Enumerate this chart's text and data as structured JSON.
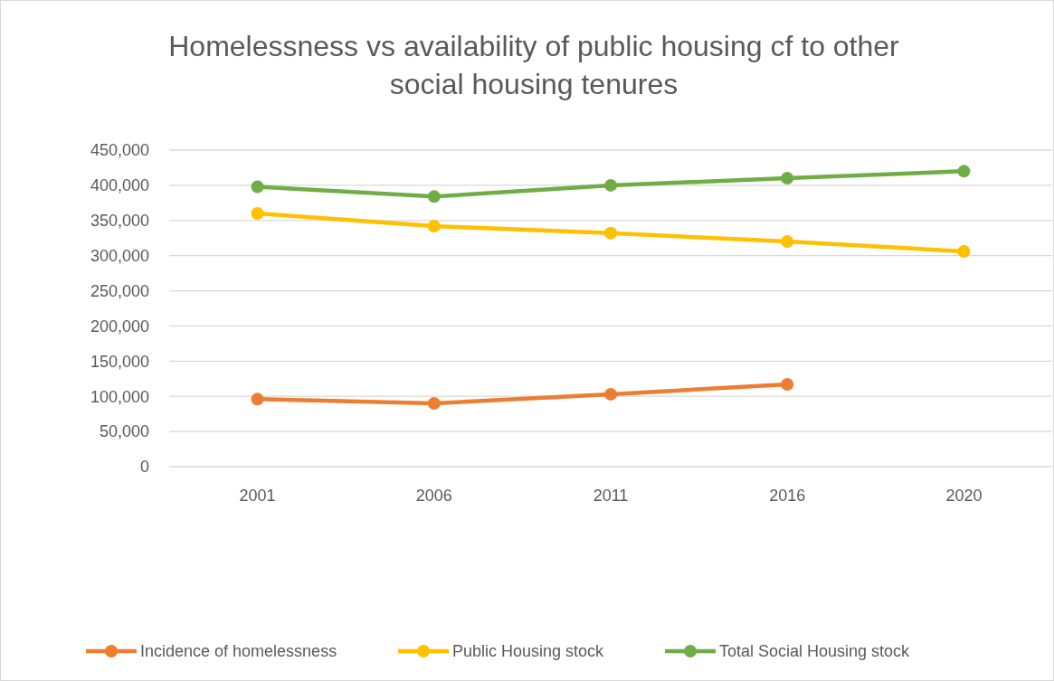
{
  "chart_data": {
    "type": "line",
    "title": "Homelessness vs availability of public housing cf to other social housing tenures",
    "categories": [
      "2001",
      "2006",
      "2011",
      "2016",
      "2020"
    ],
    "series": [
      {
        "name": "Incidence of homelessness",
        "color": "#ed7d31",
        "values": [
          96000,
          90000,
          103000,
          117000,
          null
        ]
      },
      {
        "name": "Public Housing stock",
        "color": "#ffc000",
        "values": [
          360000,
          342000,
          332000,
          320000,
          306000
        ]
      },
      {
        "name": "Total Social Housing stock",
        "color": "#70ad47",
        "values": [
          398000,
          384000,
          400000,
          410000,
          420000
        ]
      }
    ],
    "ylim": [
      0,
      450000
    ],
    "yticks": [
      {
        "value": 0,
        "label": "0"
      },
      {
        "value": 50000,
        "label": "50,000"
      },
      {
        "value": 100000,
        "label": "100,000"
      },
      {
        "value": 150000,
        "label": "150,000"
      },
      {
        "value": 200000,
        "label": "200,000"
      },
      {
        "value": 250000,
        "label": "250,000"
      },
      {
        "value": 300000,
        "label": "300,000"
      },
      {
        "value": 350000,
        "label": "350,000"
      },
      {
        "value": 400000,
        "label": "400,000"
      },
      {
        "value": 450000,
        "label": "450,000"
      }
    ],
    "grid": "y",
    "legend": "bottom",
    "marker": "circle",
    "line_style": "solid"
  }
}
